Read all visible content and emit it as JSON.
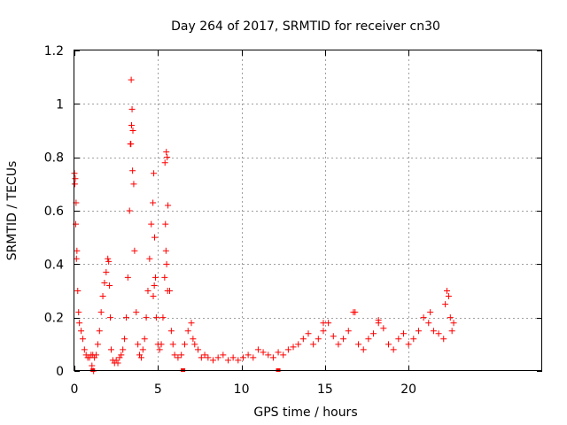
{
  "chart_data": {
    "type": "scatter",
    "title": "Day 264 of 2017, SRMTID for receiver cn30",
    "xlabel": "GPS time / hours",
    "ylabel": "SRMTID / TECUs",
    "xlim": [
      0,
      28
    ],
    "ylim": [
      0,
      1.2
    ],
    "x_ticks": [
      0,
      5,
      10,
      15,
      20
    ],
    "x_tick_labels": [
      "0",
      "5",
      "10",
      "15",
      "20"
    ],
    "y_ticks": [
      0,
      0.2,
      0.4,
      0.6,
      0.8,
      1.0,
      1.2
    ],
    "y_tick_labels": [
      "0",
      "0.2",
      "0.4",
      "0.6",
      "0.8",
      "1",
      "1.2"
    ],
    "grid": true,
    "marker": "plus",
    "series": [
      {
        "name": "SRMTID",
        "color": "#ff0000",
        "x": [
          0.0,
          0.05,
          0.1,
          0.15,
          0.2,
          0.25,
          0.3,
          0.4,
          0.5,
          0.6,
          0.7,
          0.8,
          0.9,
          1.0,
          1.1,
          1.2,
          1.3,
          1.4,
          1.5,
          1.6,
          1.7,
          1.8,
          1.9,
          2.0,
          2.05,
          2.1,
          2.15,
          2.2,
          2.3,
          2.4,
          2.5,
          2.6,
          2.7,
          2.8,
          2.9,
          3.0,
          3.1,
          3.2,
          3.3,
          3.35,
          3.4,
          3.45,
          3.5,
          3.55,
          3.6,
          3.7,
          3.8,
          3.9,
          4.0,
          4.1,
          4.2,
          4.3,
          4.4,
          4.5,
          4.6,
          4.7,
          4.75,
          4.8,
          4.85,
          4.9,
          5.0,
          5.1,
          5.2,
          5.3,
          5.4,
          5.45,
          5.5,
          5.55,
          5.6,
          5.7,
          5.8,
          5.9,
          6.0,
          6.2,
          6.4,
          6.6,
          6.8,
          7.0,
          7.2,
          7.4,
          7.6,
          7.8,
          8.0,
          8.3,
          8.6,
          8.9,
          9.2,
          9.5,
          9.8,
          10.1,
          10.4,
          10.7,
          11.0,
          11.3,
          11.6,
          11.9,
          12.2,
          12.5,
          12.8,
          13.1,
          13.4,
          13.7,
          14.0,
          14.3,
          14.6,
          14.9,
          15.2,
          15.5,
          15.8,
          16.1,
          16.4,
          16.7,
          17.0,
          17.3,
          17.6,
          17.9,
          18.2,
          18.5,
          18.8,
          19.1,
          19.4,
          19.7,
          20.0,
          20.3,
          20.6,
          20.9,
          21.2,
          21.5,
          21.8,
          22.1,
          22.3,
          22.5,
          22.7,
          0.02,
          0.08,
          0.12,
          1.05,
          1.15,
          3.38,
          3.42,
          3.48,
          4.72,
          4.78,
          5.42,
          5.48,
          5.52,
          5.58,
          7.1,
          14.9,
          16.8,
          18.2,
          21.3,
          22.2,
          22.4,
          22.6
        ],
        "y": [
          0.74,
          0.72,
          0.63,
          0.45,
          0.3,
          0.22,
          0.18,
          0.15,
          0.12,
          0.08,
          0.06,
          0.05,
          0.05,
          0.06,
          0.06,
          0.05,
          0.06,
          0.1,
          0.15,
          0.22,
          0.28,
          0.33,
          0.37,
          0.42,
          0.41,
          0.32,
          0.2,
          0.08,
          0.04,
          0.03,
          0.04,
          0.03,
          0.05,
          0.06,
          0.08,
          0.12,
          0.2,
          0.35,
          0.6,
          0.85,
          1.09,
          0.98,
          0.9,
          0.7,
          0.45,
          0.22,
          0.1,
          0.06,
          0.05,
          0.08,
          0.12,
          0.2,
          0.3,
          0.42,
          0.55,
          0.63,
          0.74,
          0.5,
          0.35,
          0.2,
          0.1,
          0.08,
          0.1,
          0.2,
          0.35,
          0.55,
          0.82,
          0.8,
          0.62,
          0.3,
          0.15,
          0.1,
          0.06,
          0.05,
          0.06,
          0.1,
          0.15,
          0.18,
          0.1,
          0.08,
          0.05,
          0.06,
          0.05,
          0.04,
          0.05,
          0.06,
          0.04,
          0.05,
          0.04,
          0.05,
          0.06,
          0.05,
          0.08,
          0.07,
          0.06,
          0.05,
          0.07,
          0.06,
          0.08,
          0.09,
          0.1,
          0.12,
          0.14,
          0.1,
          0.12,
          0.15,
          0.18,
          0.13,
          0.1,
          0.12,
          0.15,
          0.22,
          0.1,
          0.08,
          0.12,
          0.14,
          0.18,
          0.16,
          0.1,
          0.08,
          0.12,
          0.14,
          0.1,
          0.12,
          0.15,
          0.2,
          0.18,
          0.15,
          0.14,
          0.12,
          0.3,
          0.2,
          0.18,
          0.7,
          0.55,
          0.42,
          0.02,
          0.0,
          0.85,
          0.92,
          0.75,
          0.28,
          0.32,
          0.78,
          0.45,
          0.4,
          0.3,
          0.12,
          0.18,
          0.22,
          0.19,
          0.22,
          0.25,
          0.28,
          0.15
        ]
      }
    ],
    "axis_markers_x": [
      1.1,
      6.5,
      12.2
    ]
  }
}
